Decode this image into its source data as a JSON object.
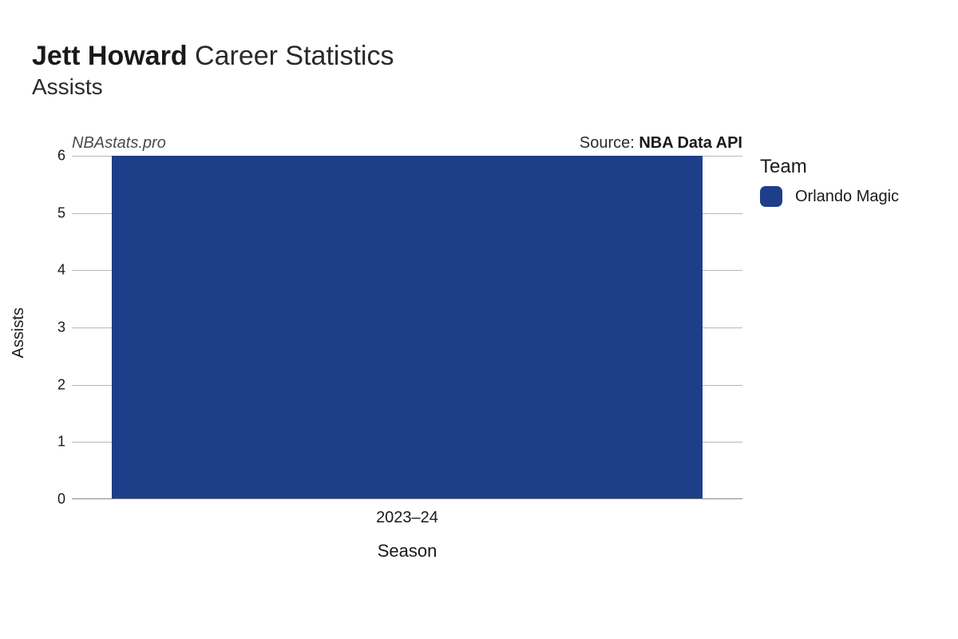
{
  "title": {
    "bold": "Jett Howard",
    "rest": " Career Statistics",
    "fontsize": 34
  },
  "subtitle": {
    "text": "Assists",
    "fontsize": 28
  },
  "watermark": "NBAstats.pro",
  "source": {
    "label": "Source: ",
    "name": "NBA Data API"
  },
  "chart": {
    "type": "bar",
    "x_label": "Season",
    "y_label": "Assists",
    "categories": [
      "2023–24"
    ],
    "values": [
      6
    ],
    "bar_colors": [
      "#1f3e8a"
    ],
    "ylim": [
      0,
      6
    ],
    "ytick_step": 1,
    "bar_width": 0.88,
    "background_color": "#ffffff",
    "grid_color": "#b8b8b8",
    "axis_fontsize": 18,
    "label_fontsize": 20,
    "xlabel_fontsize": 22
  },
  "legend": {
    "title": "Team",
    "items": [
      {
        "label": "Orlando Magic",
        "color": "#1f3e8a"
      }
    ]
  }
}
